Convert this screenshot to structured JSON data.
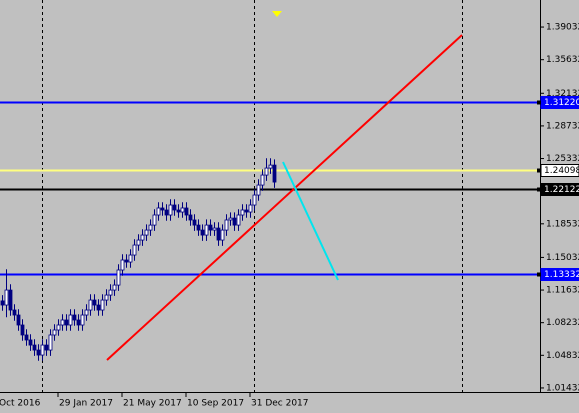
{
  "chart_data": {
    "type": "candlestick",
    "open": [
      1.105,
      1.1007,
      1.1163,
      1.0955,
      1.0903,
      1.0799,
      1.0695,
      1.0643,
      1.059,
      1.0538,
      1.0486,
      1.059,
      1.0538,
      1.0695,
      1.0747,
      1.0799,
      1.0851,
      1.0799,
      1.0903,
      1.0851,
      1.0799,
      1.0903,
      1.0955,
      1.1059,
      1.1007,
      1.0955,
      1.1059,
      1.1111,
      1.1163,
      1.1215,
      1.1372,
      1.1476,
      1.1455,
      1.1528,
      1.1632,
      1.1684,
      1.1736,
      1.1788,
      1.184,
      1.1945,
      1.2018,
      1.1997,
      1.1945,
      1.2049,
      1.1997,
      1.1976,
      1.2018,
      1.1945,
      1.1893,
      1.184,
      1.1788,
      1.1736,
      1.184,
      1.1788,
      1.1809,
      1.1684,
      1.1788,
      1.1893,
      1.1913,
      1.184,
      1.1945,
      1.1997,
      1.1976,
      1.2049,
      1.2153,
      1.2257,
      1.2361,
      1.2434,
      1.2465
    ],
    "high": [
      1.111,
      1.138,
      1.1223,
      1.1015,
      1.0963,
      1.0859,
      1.0755,
      1.0703,
      1.065,
      1.0598,
      1.065,
      1.065,
      1.0755,
      1.0807,
      1.0859,
      1.0911,
      1.0911,
      1.0963,
      1.0963,
      1.0911,
      1.0963,
      1.1015,
      1.1119,
      1.1119,
      1.1067,
      1.1119,
      1.1171,
      1.1223,
      1.1275,
      1.1432,
      1.1536,
      1.1536,
      1.1588,
      1.1692,
      1.1744,
      1.1796,
      1.1848,
      1.19,
      1.2005,
      1.2078,
      1.2078,
      1.2057,
      1.2109,
      1.2109,
      1.2057,
      1.2078,
      1.2078,
      1.2005,
      1.1953,
      1.19,
      1.1848,
      1.19,
      1.19,
      1.1869,
      1.1869,
      1.1848,
      1.1953,
      1.1973,
      1.1973,
      1.2005,
      1.2057,
      1.2057,
      1.2109,
      1.2213,
      1.2317,
      1.2421,
      1.2536,
      1.2536,
      1.2525
    ],
    "low": [
      1.0947,
      1.088,
      1.0895,
      1.0843,
      1.0739,
      1.0635,
      1.0583,
      1.053,
      1.0478,
      1.0426,
      1.0426,
      1.0478,
      1.0478,
      1.0635,
      1.0687,
      1.0739,
      1.0739,
      1.0739,
      1.0791,
      1.0739,
      1.0739,
      1.0843,
      1.0895,
      1.0947,
      1.0895,
      1.0895,
      1.0999,
      1.1051,
      1.1103,
      1.1155,
      1.1312,
      1.1395,
      1.1395,
      1.1468,
      1.1572,
      1.1624,
      1.1676,
      1.1728,
      1.178,
      1.1885,
      1.1937,
      1.1885,
      1.1885,
      1.1937,
      1.1916,
      1.1916,
      1.1885,
      1.1833,
      1.178,
      1.1728,
      1.1676,
      1.1676,
      1.1728,
      1.1728,
      1.1624,
      1.1624,
      1.1728,
      1.1833,
      1.178,
      1.178,
      1.1885,
      1.1916,
      1.1916,
      1.1989,
      1.2093,
      1.2197,
      1.2301,
      1.2374,
      1.2228
    ],
    "close": [
      1.1007,
      1.1163,
      1.0955,
      1.0903,
      1.0799,
      1.0695,
      1.0643,
      1.059,
      1.0538,
      1.0486,
      1.059,
      1.0538,
      1.0695,
      1.0747,
      1.0799,
      1.0851,
      1.0799,
      1.0903,
      1.0851,
      1.0799,
      1.0903,
      1.0955,
      1.1059,
      1.1007,
      1.0955,
      1.1059,
      1.1111,
      1.1163,
      1.1215,
      1.1372,
      1.1476,
      1.1455,
      1.1528,
      1.1632,
      1.1684,
      1.1736,
      1.1788,
      1.184,
      1.1945,
      1.2018,
      1.1997,
      1.1945,
      1.2049,
      1.1997,
      1.1976,
      1.2018,
      1.1945,
      1.1893,
      1.184,
      1.1788,
      1.1736,
      1.184,
      1.1788,
      1.1809,
      1.1684,
      1.1788,
      1.1893,
      1.1913,
      1.184,
      1.1945,
      1.1997,
      1.1976,
      1.2049,
      1.2153,
      1.2257,
      1.2361,
      1.2434,
      1.2465,
      1.2288
    ],
    "up_color": "#ffffff",
    "down_color": "#000080",
    "wick_color": "#000080",
    "ylim": [
      1.0101,
      1.4185
    ],
    "yticks": [
      1.39032,
      1.35632,
      1.32132,
      1.28732,
      1.25332,
      1.18532,
      1.15032,
      1.11632,
      1.08232,
      1.04832,
      1.01432
    ],
    "xticks": [
      {
        "value": -1,
        "label": "Oct 2016"
      },
      {
        "value": 14,
        "label": "29 Jan 2017"
      },
      {
        "value": 30,
        "label": "21 May 2017"
      },
      {
        "value": 46,
        "label": "10 Sep 2017"
      },
      {
        "value": 62,
        "label": "31 Dec 2017"
      }
    ],
    "levels": [
      {
        "value": 1.3122,
        "label": "1.31220",
        "color": "#0000ff"
      },
      {
        "value": 1.24098,
        "label": "1.24098",
        "color": "#ffff80"
      },
      {
        "value": 1.22122,
        "label": "1.22122",
        "color": "#000000"
      },
      {
        "value": 1.13332,
        "label": "1.13332",
        "color": "#0000ff"
      }
    ]
  }
}
